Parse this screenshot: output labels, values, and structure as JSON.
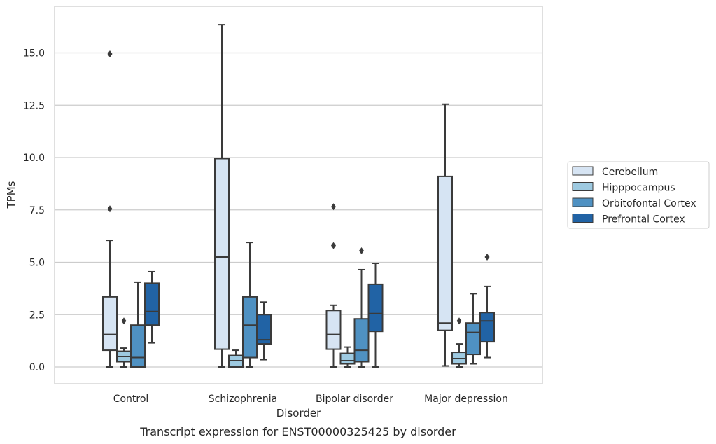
{
  "chart_data": {
    "type": "box",
    "xlabel": "Disorder",
    "ylabel": "TPMs",
    "caption": "Transcript expression for ENST00000325425 by disorder",
    "ylim": [
      -0.8,
      17.0
    ],
    "yticks": [
      "0.0",
      "2.5",
      "5.0",
      "7.5",
      "10.0",
      "12.5",
      "15.0"
    ],
    "ytick_values": [
      0,
      2.5,
      5,
      7.5,
      10,
      12.5,
      15
    ],
    "grid": "horizontal",
    "legend_position": "right",
    "categories": [
      "Control",
      "Schizophrenia",
      "Bipolar disorder",
      "Major depression"
    ],
    "series": [
      {
        "name": "Cerebellum",
        "color": "#d6e4f3",
        "boxes": [
          {
            "whislo": 0.0,
            "q1": 0.8,
            "med": 1.55,
            "q3": 3.35,
            "whishi": 6.05,
            "fliers": [
              7.55,
              14.95
            ]
          },
          {
            "whislo": 0.0,
            "q1": 0.85,
            "med": 5.25,
            "q3": 9.95,
            "whishi": 16.35,
            "fliers": []
          },
          {
            "whislo": 0.0,
            "q1": 0.85,
            "med": 1.55,
            "q3": 2.7,
            "whishi": 2.95,
            "fliers": [
              5.8,
              7.65
            ]
          },
          {
            "whislo": 0.05,
            "q1": 1.75,
            "med": 2.1,
            "q3": 9.1,
            "whishi": 12.55,
            "fliers": []
          }
        ]
      },
      {
        "name": "Hipppocampus",
        "color": "#9ecae1",
        "boxes": [
          {
            "whislo": 0.0,
            "q1": 0.25,
            "med": 0.5,
            "q3": 0.75,
            "whishi": 0.9,
            "fliers": [
              2.2
            ]
          },
          {
            "whislo": 0.0,
            "q1": 0.0,
            "med": 0.3,
            "q3": 0.55,
            "whishi": 0.8,
            "fliers": []
          },
          {
            "whislo": 0.0,
            "q1": 0.15,
            "med": 0.3,
            "q3": 0.65,
            "whishi": 0.95,
            "fliers": []
          },
          {
            "whislo": 0.0,
            "q1": 0.15,
            "med": 0.4,
            "q3": 0.7,
            "whishi": 1.1,
            "fliers": [
              2.2
            ]
          }
        ]
      },
      {
        "name": "Orbitofontal Cortex",
        "color": "#4f91c2",
        "boxes": [
          {
            "whislo": 0.0,
            "q1": 0.0,
            "med": 0.45,
            "q3": 2.0,
            "whishi": 4.05,
            "fliers": []
          },
          {
            "whislo": 0.0,
            "q1": 0.45,
            "med": 2.0,
            "q3": 3.35,
            "whishi": 5.95,
            "fliers": []
          },
          {
            "whislo": 0.0,
            "q1": 0.25,
            "med": 0.8,
            "q3": 2.3,
            "whishi": 4.65,
            "fliers": [
              5.55
            ]
          },
          {
            "whislo": 0.15,
            "q1": 0.6,
            "med": 1.65,
            "q3": 2.1,
            "whishi": 3.5,
            "fliers": []
          }
        ]
      },
      {
        "name": "Prefrontal Cortex",
        "color": "#2163a5",
        "boxes": [
          {
            "whislo": 1.15,
            "q1": 2.0,
            "med": 2.65,
            "q3": 4.0,
            "whishi": 4.55,
            "fliers": []
          },
          {
            "whislo": 0.35,
            "q1": 1.1,
            "med": 1.3,
            "q3": 2.5,
            "whishi": 3.1,
            "fliers": []
          },
          {
            "whislo": 0.0,
            "q1": 1.7,
            "med": 2.55,
            "q3": 3.95,
            "whishi": 4.95,
            "fliers": []
          },
          {
            "whislo": 0.45,
            "q1": 1.2,
            "med": 2.2,
            "q3": 2.6,
            "whishi": 3.85,
            "fliers": [
              5.25
            ]
          }
        ]
      }
    ]
  }
}
